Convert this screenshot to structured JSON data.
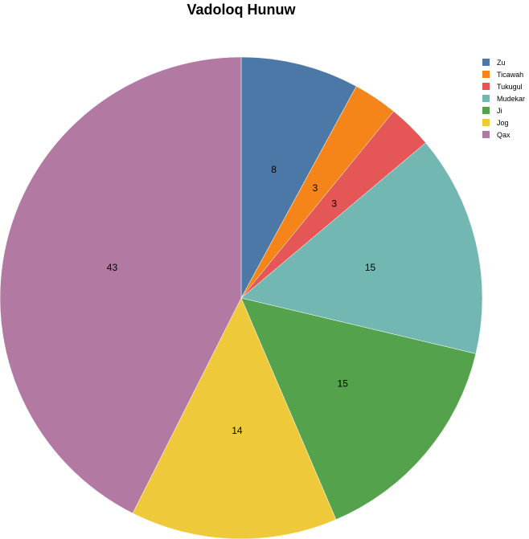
{
  "chart_data": {
    "type": "pie",
    "title": "Vadoloq Hunuw",
    "categories": [
      "Zu",
      "Ticawah",
      "Tukugul",
      "Mudekar",
      "Ji",
      "Jog",
      "Qax"
    ],
    "values": [
      8,
      3,
      3,
      15,
      15,
      14,
      43
    ],
    "colors": [
      "#4c78a8",
      "#f58518",
      "#e45756",
      "#72b7b2",
      "#54a24b",
      "#eeca3b",
      "#b279a2"
    ],
    "legend_position": "top-right",
    "data_labels": true
  }
}
